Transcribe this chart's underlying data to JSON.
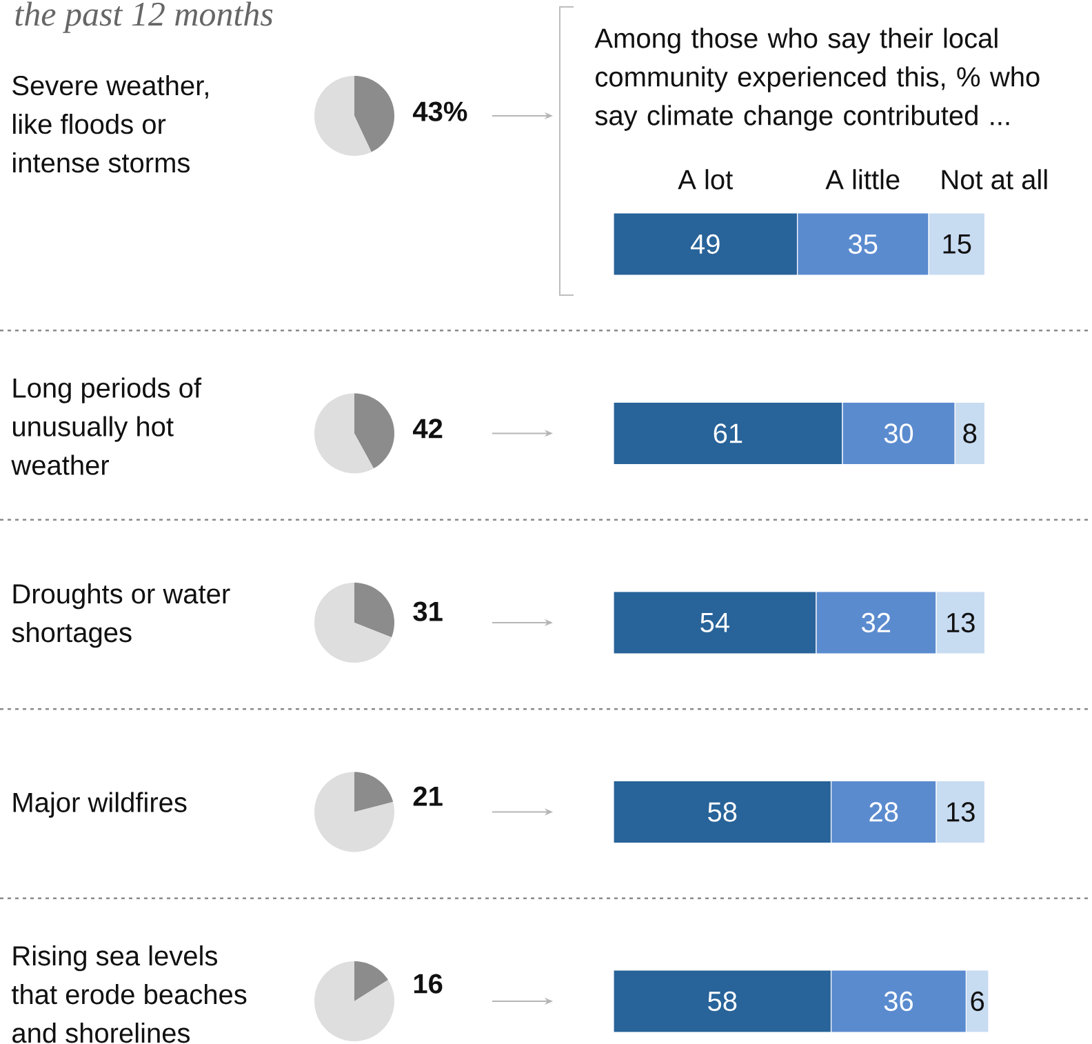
{
  "chart_data": [
    {
      "type": "pie",
      "title": "the past 12 months",
      "categories": [
        null,
        null
      ],
      "values": [
        43,
        57
      ],
      "colors": [
        "#8c8c8c",
        "#dedede"
      ],
      "value_labels": [
        "43%",
        null
      ]
    },
    {
      "type": "pie",
      "categories": [
        null,
        null
      ],
      "values": [
        42,
        58
      ],
      "colors": [
        "#8c8c8c",
        "#dedede"
      ],
      "value_labels": [
        "42",
        null
      ]
    },
    {
      "type": "pie",
      "categories": [
        null,
        null
      ],
      "values": [
        31,
        69
      ],
      "colors": [
        "#8c8c8c",
        "#dedede"
      ],
      "value_labels": [
        "31",
        null
      ]
    },
    {
      "type": "pie",
      "categories": [
        null,
        null
      ],
      "values": [
        21,
        79
      ],
      "colors": [
        "#8c8c8c",
        "#dedede"
      ],
      "value_labels": [
        "21",
        null
      ]
    },
    {
      "type": "pie",
      "categories": [
        null,
        null
      ],
      "values": [
        16,
        84
      ],
      "colors": [
        "#8c8c8c",
        "#dedede"
      ],
      "value_labels": [
        "16",
        null
      ]
    },
    {
      "type": "bar",
      "orientation": "horizontal",
      "stacked": true,
      "subtitle": "Among those who say their local community experienced this, % who say climate change contributed ...",
      "categories": [
        "Severe weather, like floods or intense storms",
        "Long periods of unusually hot weather",
        "Droughts or water shortages",
        "Major wildfires",
        "Rising sea levels that erode beaches and shorelines"
      ],
      "series": [
        {
          "name": "A lot",
          "color": "#286399",
          "values": [
            49,
            61,
            54,
            58,
            58
          ]
        },
        {
          "name": "A little",
          "color": "#5b8bcf",
          "values": [
            35,
            30,
            32,
            28,
            36
          ]
        },
        {
          "name": "Not at all",
          "color": "#c7dbf1",
          "values": [
            15,
            8,
            13,
            13,
            6
          ]
        }
      ],
      "data_labels": true,
      "tick_labels": "y"
    }
  ]
}
